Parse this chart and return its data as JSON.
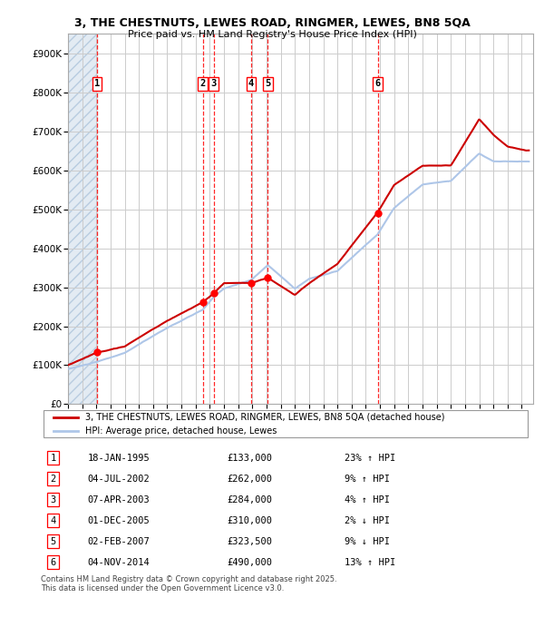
{
  "title1": "3, THE CHESTNUTS, LEWES ROAD, RINGMER, LEWES, BN8 5QA",
  "title2": "Price paid vs. HM Land Registry's House Price Index (HPI)",
  "yticks": [
    0,
    100000,
    200000,
    300000,
    400000,
    500000,
    600000,
    700000,
    800000,
    900000
  ],
  "ytick_labels": [
    "£0",
    "£100K",
    "£200K",
    "£300K",
    "£400K",
    "£500K",
    "£600K",
    "£700K",
    "£800K",
    "£900K"
  ],
  "xlim_start": 1993.0,
  "xlim_end": 2025.8,
  "ylim_min": 0,
  "ylim_max": 950000,
  "sale_dates": [
    1995.05,
    2002.5,
    2003.27,
    2005.92,
    2007.09,
    2014.84
  ],
  "sale_prices": [
    133000,
    262000,
    284000,
    310000,
    323500,
    490000
  ],
  "sale_labels": [
    "1",
    "2",
    "3",
    "4",
    "5",
    "6"
  ],
  "hpi_line_color": "#aec6e8",
  "price_line_color": "#cc0000",
  "grid_color": "#cccccc",
  "legend_label_red": "3, THE CHESTNUTS, LEWES ROAD, RINGMER, LEWES, BN8 5QA (detached house)",
  "legend_label_blue": "HPI: Average price, detached house, Lewes",
  "table_data": [
    [
      "1",
      "18-JAN-1995",
      "£133,000",
      "23% ↑ HPI"
    ],
    [
      "2",
      "04-JUL-2002",
      "£262,000",
      "9% ↑ HPI"
    ],
    [
      "3",
      "07-APR-2003",
      "£284,000",
      "4% ↑ HPI"
    ],
    [
      "4",
      "01-DEC-2005",
      "£310,000",
      "2% ↓ HPI"
    ],
    [
      "5",
      "02-FEB-2007",
      "£323,500",
      "9% ↓ HPI"
    ],
    [
      "6",
      "04-NOV-2014",
      "£490,000",
      "13% ↑ HPI"
    ]
  ],
  "footnote1": "Contains HM Land Registry data © Crown copyright and database right 2025.",
  "footnote2": "This data is licensed under the Open Government Licence v3.0.",
  "background_hatch_end": 1995.05,
  "hpi_anchors_x": [
    1993.0,
    1995.05,
    1997,
    2000,
    2002.5,
    2003.27,
    2004,
    2005.92,
    2007.09,
    2009,
    2010,
    2012,
    2014.84,
    2016,
    2018,
    2020,
    2022,
    2023,
    2025.3
  ],
  "hpi_anchors_y": [
    90000,
    108000,
    130000,
    195000,
    240000,
    272000,
    295000,
    316000,
    355000,
    295000,
    320000,
    340000,
    433000,
    500000,
    560000,
    570000,
    640000,
    620000,
    620000
  ],
  "price_anchors_x": [
    1993.0,
    1995.05,
    1997,
    2000,
    2002.5,
    2003.27,
    2004,
    2005.92,
    2007.09,
    2009,
    2010,
    2012,
    2014.84,
    2016,
    2018,
    2020,
    2022,
    2023,
    2024,
    2025.3
  ],
  "price_anchors_y": [
    100000,
    133000,
    148000,
    215000,
    262000,
    284000,
    310000,
    310000,
    323500,
    280000,
    310000,
    360000,
    490000,
    560000,
    610000,
    610000,
    730000,
    690000,
    660000,
    650000
  ]
}
